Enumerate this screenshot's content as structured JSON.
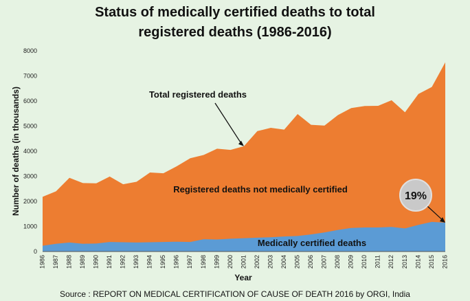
{
  "chart_data": {
    "type": "area",
    "title_lines": [
      "Status of medically certified deaths to total",
      "registered deaths (1986-2016)"
    ],
    "xlabel": "Year",
    "ylabel": "Number of deaths (in thousands)",
    "ylim": [
      0,
      8000
    ],
    "yticks": [
      0,
      1000,
      2000,
      3000,
      4000,
      5000,
      6000,
      7000,
      8000
    ],
    "x": [
      1986,
      1987,
      1988,
      1989,
      1990,
      1991,
      1992,
      1993,
      1994,
      1995,
      1996,
      1997,
      1998,
      1999,
      2000,
      2001,
      2002,
      2003,
      2004,
      2005,
      2006,
      2007,
      2008,
      2009,
      2010,
      2011,
      2012,
      2013,
      2014,
      2015,
      2016
    ],
    "series": [
      {
        "name": "Total registered deaths",
        "color": "#ed7d31",
        "values": [
          2180,
          2400,
          2940,
          2730,
          2720,
          2990,
          2680,
          2780,
          3150,
          3120,
          3400,
          3720,
          3850,
          4100,
          4050,
          4200,
          4800,
          4930,
          4860,
          5480,
          5050,
          5020,
          5440,
          5720,
          5800,
          5810,
          6030,
          5550,
          6280,
          6560,
          7540
        ]
      },
      {
        "name": "Medically certified deaths",
        "color": "#5b9bd5",
        "values": [
          230,
          310,
          360,
          310,
          320,
          380,
          370,
          360,
          370,
          380,
          390,
          380,
          490,
          480,
          510,
          530,
          550,
          570,
          600,
          620,
          680,
          760,
          860,
          940,
          960,
          960,
          980,
          920,
          1060,
          1180,
          1150
        ]
      }
    ],
    "annotations": {
      "total_label": "Total registered deaths",
      "not_certified_label": "Registered deaths not medically certified",
      "certified_label": "Medically certified deaths",
      "percent_badge": "19%"
    },
    "source": "Source : REPORT ON MEDICAL CERTIFICATION OF CAUSE OF DEATH 2016 by ORGI, India"
  },
  "colors": {
    "background": "#e6f3e3",
    "orange": "#ed7d31",
    "blue": "#5b9bd5",
    "badge": "#c9c9c9"
  }
}
